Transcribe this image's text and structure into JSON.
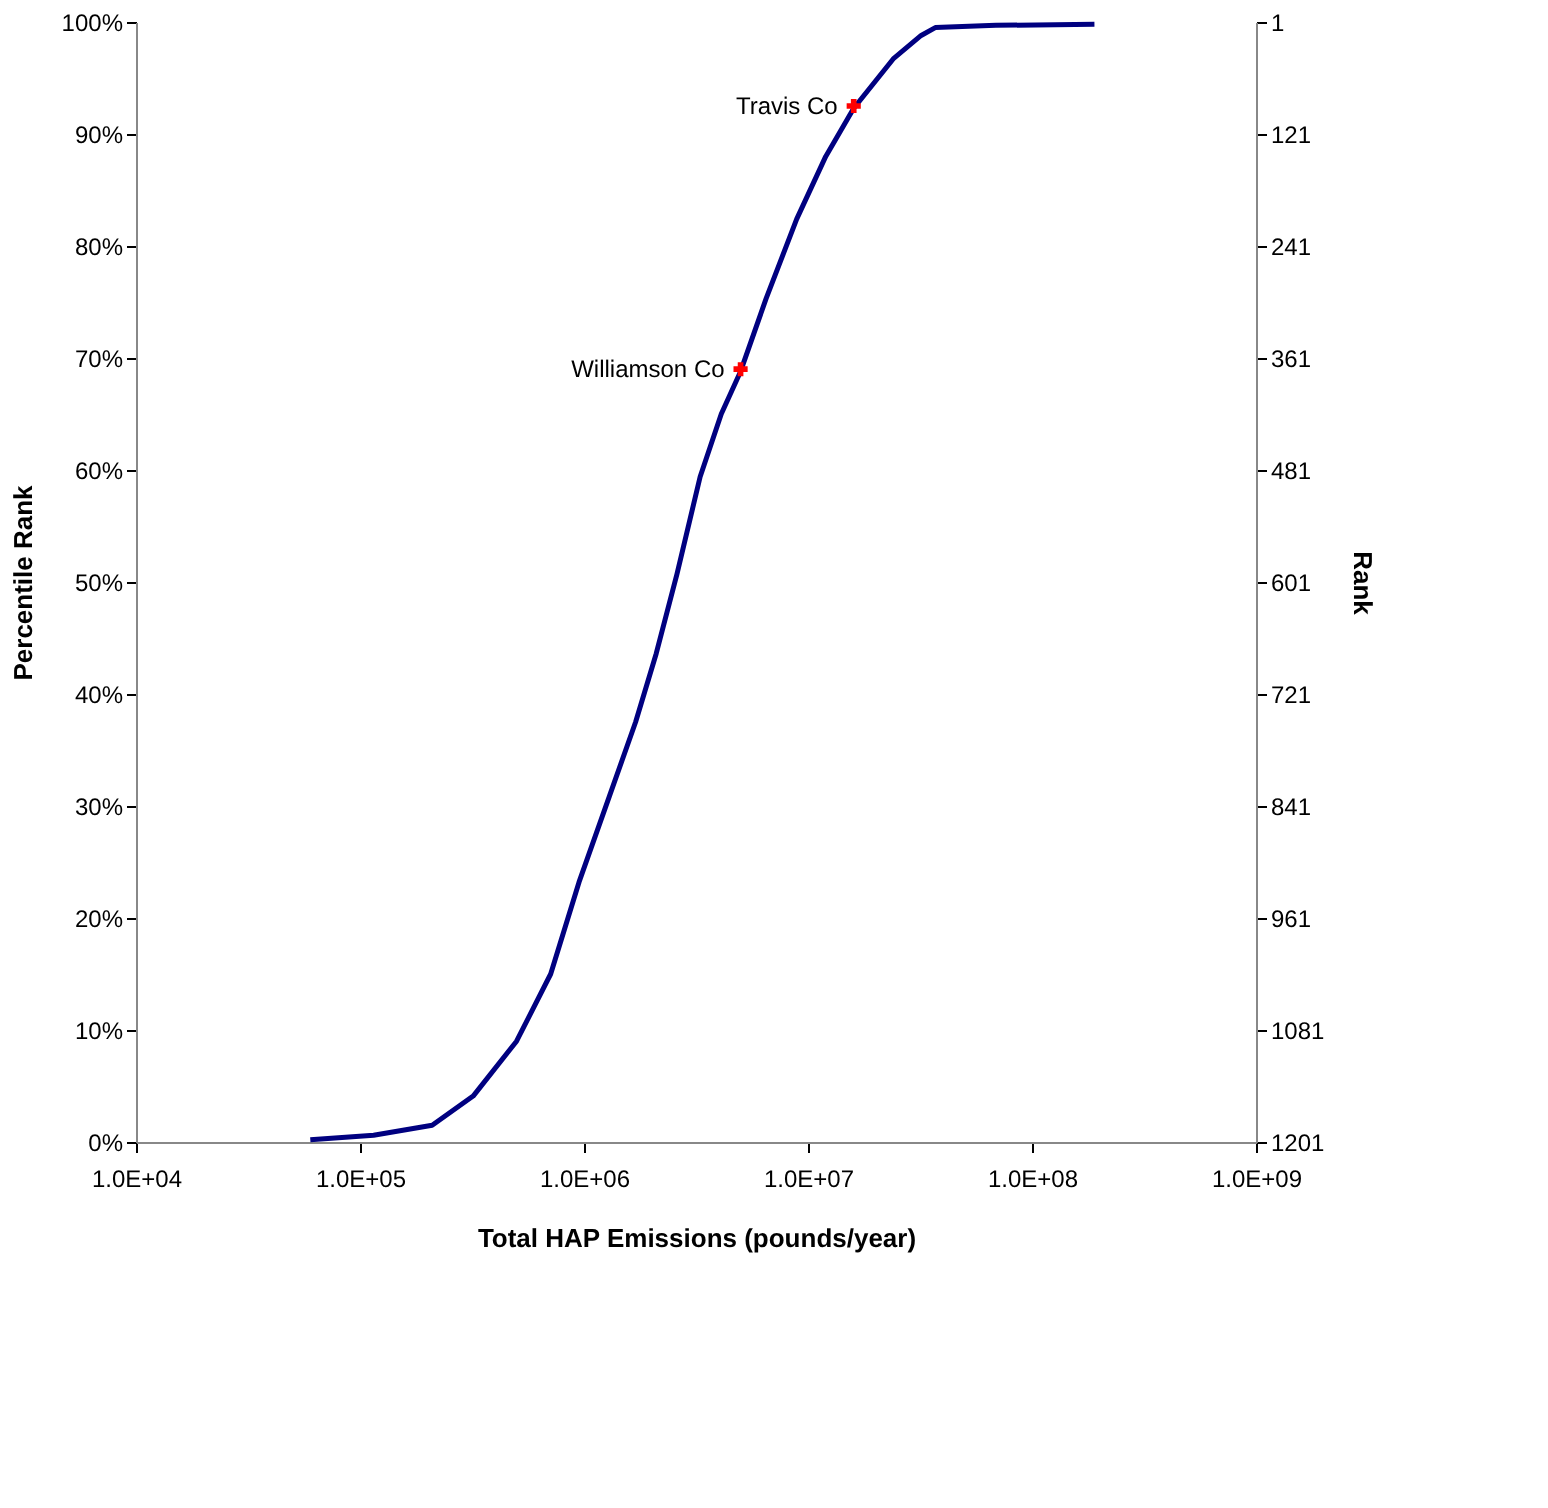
{
  "chart_data": {
    "type": "line",
    "xlabel": "Total HAP Emissions (pounds/year)",
    "ylabel": "Percentile Rank",
    "y2label": "Rank",
    "log": "x",
    "xlim": [
      10000,
      1000000000
    ],
    "xticks": [
      {
        "value": 10000,
        "label": "1.0E+04"
      },
      {
        "value": 100000,
        "label": "1.0E+05"
      },
      {
        "value": 1000000,
        "label": "1.0E+06"
      },
      {
        "value": 10000000,
        "label": "1.0E+07"
      },
      {
        "value": 100000000,
        "label": "1.0E+08"
      },
      {
        "value": 1000000000,
        "label": "1.0E+09"
      }
    ],
    "ylim": [
      0,
      100
    ],
    "yticks": [
      {
        "value": 0,
        "label": "0%"
      },
      {
        "value": 10,
        "label": "10%"
      },
      {
        "value": 20,
        "label": "20%"
      },
      {
        "value": 30,
        "label": "30%"
      },
      {
        "value": 40,
        "label": "40%"
      },
      {
        "value": 50,
        "label": "50%"
      },
      {
        "value": 60,
        "label": "60%"
      },
      {
        "value": 70,
        "label": "70%"
      },
      {
        "value": 80,
        "label": "80%"
      },
      {
        "value": 90,
        "label": "90%"
      },
      {
        "value": 100,
        "label": "100%"
      }
    ],
    "y2lim": [
      1201,
      1
    ],
    "y2ticks": [
      1,
      121,
      241,
      361,
      481,
      601,
      721,
      841,
      961,
      1081,
      1201
    ],
    "series": [
      {
        "color": "#000080",
        "marker": "none",
        "x": [
          60000,
          115000,
          210000,
          320000,
          500000,
          710000,
          950000,
          1300000,
          1700000,
          2100000,
          2600000,
          3300000,
          4100000,
          5000000,
          6500000,
          8900000,
          12000000,
          16000000,
          24000000,
          32000000,
          37000000,
          69000000,
          190000000
        ],
        "values": [
          0.2,
          0.6,
          1.5,
          4.1,
          9.0,
          15.0,
          23.2,
          30.9,
          37.5,
          43.6,
          50.7,
          59.4,
          65.0,
          68.8,
          75.3,
          82.4,
          88.0,
          92.3,
          96.7,
          98.8,
          99.5,
          99.7,
          99.8
        ]
      },
      {
        "type": "scatter",
        "color": "#ff0000",
        "marker": "cross",
        "x": [
          5000000,
          16000000
        ],
        "values": [
          69,
          92.5
        ]
      }
    ],
    "annotations": [
      {
        "text": "Williamson Co",
        "x": 5000000,
        "y": 69
      },
      {
        "text": "Travis Co",
        "x": 16000000,
        "y": 92.5
      }
    ]
  }
}
